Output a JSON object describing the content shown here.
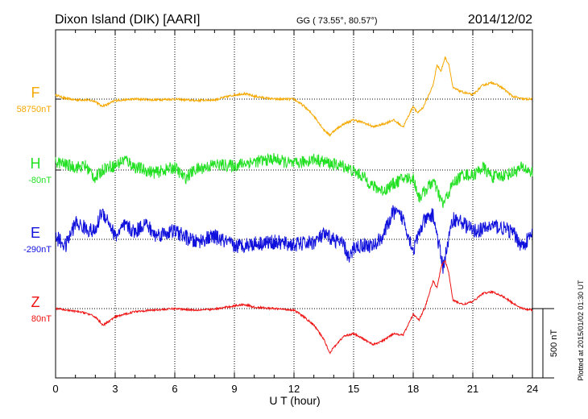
{
  "header": {
    "title": "Dixon Island (DIK)  [AARI]",
    "coords": "GG ( 73.55°,  80.57°)",
    "date": "2014/12/02"
  },
  "footer": {
    "plotted": "Plotted at 2015/01/02 01:30 UT"
  },
  "chart_data": {
    "type": "line",
    "title": "Dixon Island (DIK)  [AARI]",
    "xlabel": "U T (hour)",
    "xlim": [
      0,
      24
    ],
    "xticks": [
      "0",
      "3",
      "6",
      "9",
      "12",
      "15",
      "18",
      "21",
      "24"
    ],
    "ylabel": "",
    "scale_bar_label": "500 nT",
    "grid": true,
    "series": [
      {
        "name": "F",
        "baseline_label": "58750nT",
        "color": "#f5a800",
        "x": [
          0,
          0.5,
          1,
          1.5,
          2,
          2.3,
          2.6,
          3,
          4,
          5,
          6,
          7,
          8,
          9,
          9.5,
          10,
          11,
          12,
          12.5,
          13,
          13.5,
          13.8,
          14,
          14.5,
          15,
          15.5,
          16,
          16.5,
          17,
          17.5,
          18,
          18.2,
          18.5,
          19,
          19.2,
          19.4,
          19.6,
          19.8,
          20,
          20.5,
          21,
          21.5,
          22,
          22.5,
          23,
          23.5,
          24
        ],
        "y": [
          30,
          5,
          -5,
          -5,
          -15,
          -50,
          -40,
          -10,
          0,
          -5,
          0,
          -10,
          -5,
          30,
          40,
          20,
          0,
          0,
          -50,
          -120,
          -220,
          -260,
          -230,
          -180,
          -150,
          -170,
          -200,
          -180,
          -150,
          -200,
          -50,
          -100,
          -60,
          100,
          250,
          200,
          300,
          250,
          80,
          50,
          30,
          100,
          120,
          80,
          20,
          0,
          0
        ]
      },
      {
        "name": "H",
        "baseline_label": "-80nT",
        "color": "#22e022",
        "x": [
          0,
          0.5,
          1,
          1.5,
          2,
          2.5,
          3,
          3.5,
          4,
          5,
          6,
          6.5,
          7,
          8,
          9,
          9.5,
          10,
          11,
          12,
          12.5,
          13,
          13.5,
          14,
          14.5,
          15,
          15.5,
          16,
          16.5,
          17,
          17.5,
          18,
          18.3,
          18.6,
          19,
          19.5,
          20,
          20.5,
          21,
          21.5,
          22,
          22.5,
          23,
          23.5,
          24
        ],
        "y": [
          60,
          40,
          20,
          30,
          -60,
          20,
          30,
          80,
          20,
          -20,
          20,
          -60,
          0,
          40,
          30,
          50,
          60,
          80,
          40,
          60,
          80,
          60,
          40,
          30,
          -10,
          -50,
          -120,
          -150,
          -100,
          -60,
          -60,
          -200,
          -150,
          -80,
          -250,
          -100,
          -30,
          -40,
          20,
          -50,
          -40,
          -20,
          20,
          -20
        ]
      },
      {
        "name": "E",
        "baseline_label": "-290nT",
        "color": "#1010dd",
        "x": [
          0,
          0.5,
          1,
          1.5,
          2,
          2.3,
          2.6,
          3,
          3.5,
          4,
          4.5,
          5,
          6,
          7,
          8,
          9,
          10,
          11,
          12,
          13,
          13.5,
          14,
          14.5,
          14.8,
          15,
          15.5,
          16,
          16.5,
          17,
          17.5,
          18,
          18.5,
          19,
          19.5,
          20,
          20.5,
          21,
          21.5,
          22,
          22.5,
          23,
          23.5,
          24
        ],
        "y": [
          20,
          -50,
          120,
          80,
          50,
          200,
          150,
          20,
          100,
          50,
          120,
          30,
          60,
          -20,
          20,
          -50,
          -30,
          -20,
          -40,
          -20,
          30,
          0,
          -40,
          -150,
          -60,
          -40,
          -50,
          30,
          200,
          150,
          -80,
          120,
          180,
          -200,
          150,
          120,
          60,
          70,
          100,
          80,
          50,
          -50,
          40
        ]
      },
      {
        "name": "Z",
        "baseline_label": "80nT",
        "color": "#ee1111",
        "x": [
          0,
          0.5,
          1,
          1.5,
          2,
          2.4,
          2.8,
          3,
          4,
          5,
          6,
          7,
          8,
          9,
          9.5,
          10,
          11,
          12,
          12.5,
          13,
          13.5,
          13.8,
          14,
          14.5,
          15,
          15.5,
          16,
          16.5,
          17,
          17.5,
          18,
          18.3,
          18.6,
          19,
          19.2,
          19.4,
          19.6,
          19.8,
          20,
          20.5,
          21,
          21.5,
          22,
          22.5,
          23,
          23.5,
          24
        ],
        "y": [
          0,
          -10,
          -20,
          -30,
          -60,
          -120,
          -80,
          -60,
          -20,
          -10,
          0,
          -10,
          -5,
          20,
          30,
          10,
          0,
          -10,
          -60,
          -120,
          -220,
          -320,
          -280,
          -200,
          -180,
          -220,
          -260,
          -230,
          -180,
          -190,
          -40,
          -80,
          10,
          200,
          150,
          300,
          350,
          250,
          60,
          30,
          50,
          110,
          120,
          90,
          40,
          0,
          -10
        ]
      }
    ]
  }
}
